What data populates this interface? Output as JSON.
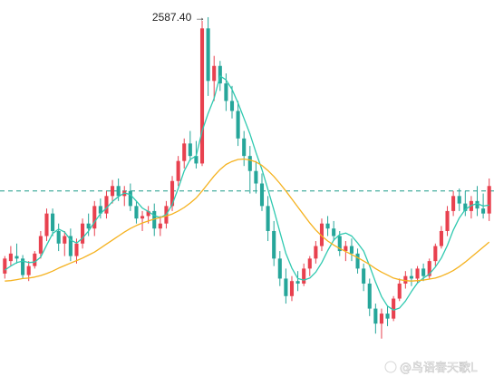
{
  "chart_data": {
    "type": "candlestick",
    "title": "",
    "xlabel": "",
    "ylabel": "",
    "grid": false,
    "legend": "none",
    "ylim": [
      1930,
      2600
    ],
    "reference_line": {
      "value": 2240,
      "color": "#1a9c88",
      "style": "dashed"
    },
    "high_label": {
      "text": "2587.40 →",
      "value": 2587.4
    },
    "colors": {
      "up": "#e8414f",
      "down": "#26a69a",
      "ma_short": "#2fc9b0",
      "ma_long": "#f5b21f"
    },
    "series": [
      {
        "name": "",
        "kind": "ohlc",
        "values": [
          [
            2075,
            2110,
            2065,
            2105
          ],
          [
            2100,
            2130,
            2090,
            2115
          ],
          [
            2110,
            2135,
            2095,
            2105
          ],
          [
            2105,
            2112,
            2065,
            2072
          ],
          [
            2072,
            2100,
            2060,
            2090
          ],
          [
            2090,
            2120,
            2085,
            2115
          ],
          [
            2115,
            2160,
            2105,
            2150
          ],
          [
            2150,
            2205,
            2140,
            2195
          ],
          [
            2195,
            2205,
            2150,
            2160
          ],
          [
            2160,
            2175,
            2120,
            2135
          ],
          [
            2135,
            2160,
            2110,
            2150
          ],
          [
            2150,
            2165,
            2100,
            2110
          ],
          [
            2110,
            2145,
            2095,
            2135
          ],
          [
            2135,
            2185,
            2125,
            2175
          ],
          [
            2175,
            2195,
            2150,
            2165
          ],
          [
            2165,
            2220,
            2150,
            2210
          ],
          [
            2210,
            2225,
            2185,
            2195
          ],
          [
            2195,
            2240,
            2185,
            2230
          ],
          [
            2230,
            2262,
            2215,
            2250
          ],
          [
            2250,
            2265,
            2220,
            2230
          ],
          [
            2230,
            2250,
            2210,
            2240
          ],
          [
            2240,
            2255,
            2200,
            2210
          ],
          [
            2210,
            2220,
            2175,
            2185
          ],
          [
            2185,
            2200,
            2160,
            2190
          ],
          [
            2190,
            2210,
            2175,
            2200
          ],
          [
            2200,
            2215,
            2150,
            2165
          ],
          [
            2165,
            2190,
            2150,
            2175
          ],
          [
            2175,
            2220,
            2165,
            2210
          ],
          [
            2210,
            2270,
            2200,
            2260
          ],
          [
            2260,
            2310,
            2250,
            2300
          ],
          [
            2300,
            2345,
            2285,
            2335
          ],
          [
            2335,
            2360,
            2300,
            2310
          ],
          [
            2310,
            2340,
            2285,
            2295
          ],
          [
            2295,
            2580,
            2290,
            2565
          ],
          [
            2565,
            2587.4,
            2430,
            2460
          ],
          [
            2460,
            2510,
            2420,
            2490
          ],
          [
            2490,
            2500,
            2440,
            2455
          ],
          [
            2455,
            2475,
            2400,
            2420
          ],
          [
            2420,
            2450,
            2385,
            2400
          ],
          [
            2400,
            2420,
            2330,
            2345
          ],
          [
            2345,
            2360,
            2290,
            2310
          ],
          [
            2310,
            2330,
            2235,
            2280
          ],
          [
            2280,
            2300,
            2235,
            2255
          ],
          [
            2255,
            2275,
            2200,
            2210
          ],
          [
            2210,
            2230,
            2140,
            2160
          ],
          [
            2160,
            2180,
            2090,
            2105
          ],
          [
            2105,
            2120,
            2050,
            2065
          ],
          [
            2065,
            2085,
            2015,
            2030
          ],
          [
            2030,
            2070,
            2020,
            2060
          ],
          [
            2060,
            2080,
            2040,
            2055
          ],
          [
            2055,
            2095,
            2050,
            2085
          ],
          [
            2085,
            2110,
            2070,
            2105
          ],
          [
            2105,
            2140,
            2095,
            2130
          ],
          [
            2130,
            2185,
            2120,
            2175
          ],
          [
            2175,
            2190,
            2150,
            2165
          ],
          [
            2165,
            2180,
            2140,
            2150
          ],
          [
            2150,
            2160,
            2110,
            2120
          ],
          [
            2120,
            2140,
            2100,
            2130
          ],
          [
            2130,
            2145,
            2100,
            2115
          ],
          [
            2115,
            2125,
            2075,
            2085
          ],
          [
            2085,
            2095,
            2040,
            2055
          ],
          [
            2055,
            2065,
            1990,
            2005
          ],
          [
            2005,
            2015,
            1955,
            1975
          ],
          [
            1975,
            2005,
            1945,
            1995
          ],
          [
            1995,
            2010,
            1970,
            1985
          ],
          [
            1985,
            2030,
            1980,
            2025
          ],
          [
            2025,
            2065,
            2020,
            2055
          ],
          [
            2055,
            2080,
            2045,
            2070
          ],
          [
            2070,
            2085,
            2050,
            2065
          ],
          [
            2065,
            2090,
            2055,
            2085
          ],
          [
            2085,
            2095,
            2060,
            2070
          ],
          [
            2070,
            2105,
            2065,
            2100
          ],
          [
            2100,
            2135,
            2090,
            2130
          ],
          [
            2130,
            2170,
            2125,
            2160
          ],
          [
            2160,
            2210,
            2150,
            2200
          ],
          [
            2200,
            2240,
            2190,
            2230
          ],
          [
            2230,
            2245,
            2200,
            2215
          ],
          [
            2215,
            2240,
            2190,
            2200
          ],
          [
            2200,
            2230,
            2185,
            2220
          ],
          [
            2220,
            2250,
            2190,
            2205
          ],
          [
            2205,
            2235,
            2185,
            2195
          ],
          [
            2195,
            2265,
            2180,
            2250
          ]
        ]
      },
      {
        "name": "",
        "kind": "line",
        "color": "#2fc9b0",
        "values": [
          2082,
          2090,
          2097,
          2100,
          2097,
          2098,
          2108,
          2132,
          2155,
          2164,
          2158,
          2142,
          2136,
          2146,
          2160,
          2178,
          2195,
          2206,
          2219,
          2229,
          2236,
          2233,
          2220,
          2206,
          2199,
          2191,
          2187,
          2193,
          2213,
          2245,
          2280,
          2303,
          2310,
          2360,
          2395,
          2425,
          2470,
          2462,
          2443,
          2416,
          2385,
          2354,
          2317,
          2283,
          2243,
          2202,
          2158,
          2115,
          2086,
          2065,
          2062,
          2066,
          2078,
          2097,
          2121,
          2142,
          2153,
          2156,
          2150,
          2136,
          2120,
          2090,
          2058,
          2029,
          2010,
          2002,
          2006,
          2020,
          2039,
          2056,
          2066,
          2074,
          2088,
          2106,
          2131,
          2162,
          2186,
          2203,
          2211,
          2215,
          2210,
          2212
        ]
      },
      {
        "name": "",
        "kind": "line",
        "color": "#f5b21f",
        "values": [
          2060,
          2061,
          2063,
          2065,
          2066,
          2068,
          2071,
          2075,
          2080,
          2086,
          2091,
          2096,
          2101,
          2106,
          2112,
          2118,
          2126,
          2134,
          2142,
          2150,
          2158,
          2165,
          2171,
          2176,
          2180,
          2184,
          2187,
          2190,
          2194,
          2200,
          2207,
          2216,
          2226,
          2240,
          2255,
          2270,
          2283,
          2293,
          2299,
          2303,
          2304,
          2302,
          2298,
          2291,
          2281,
          2269,
          2255,
          2240,
          2224,
          2208,
          2192,
          2176,
          2162,
          2150,
          2140,
          2132,
          2125,
          2119,
          2113,
          2107,
          2100,
          2093,
          2085,
          2078,
          2072,
          2066,
          2063,
          2061,
          2060,
          2061,
          2062,
          2064,
          2066,
          2070,
          2075,
          2081,
          2089,
          2098,
          2108,
          2118,
          2128,
          2138
        ]
      }
    ]
  },
  "watermark": {
    "text": "@鸟语春天歌L"
  }
}
